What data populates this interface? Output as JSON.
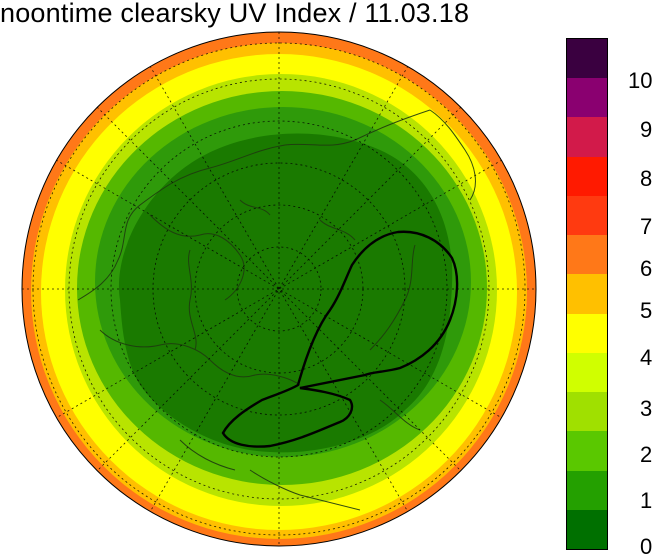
{
  "title": "noontime clearsky UV Index / 11.03.18",
  "map": {
    "projection": "north polar stereographic",
    "variable": "noontime clearsky UV Index",
    "date": "11.03.18"
  },
  "legend": {
    "labels": [
      "10",
      "9",
      "8",
      "7",
      "6",
      "5",
      "4",
      "3",
      "2",
      "1",
      "0"
    ],
    "colors_top_to_bottom": [
      "#3a0040",
      "#8a0070",
      "#d21a4a",
      "#ff1a00",
      "#ff3a10",
      "#ff7818",
      "#ffc000",
      "#ffff00",
      "#d0ff00",
      "#a0e000",
      "#5ac800",
      "#24a000",
      "#007000"
    ]
  },
  "colors": {
    "band0": "#1a7a00",
    "band1": "#2f9a0a",
    "band2": "#55b800",
    "band3": "#b8e400",
    "band4": "#ffff00",
    "band5": "#ffc000",
    "band6": "#ff7818"
  }
}
